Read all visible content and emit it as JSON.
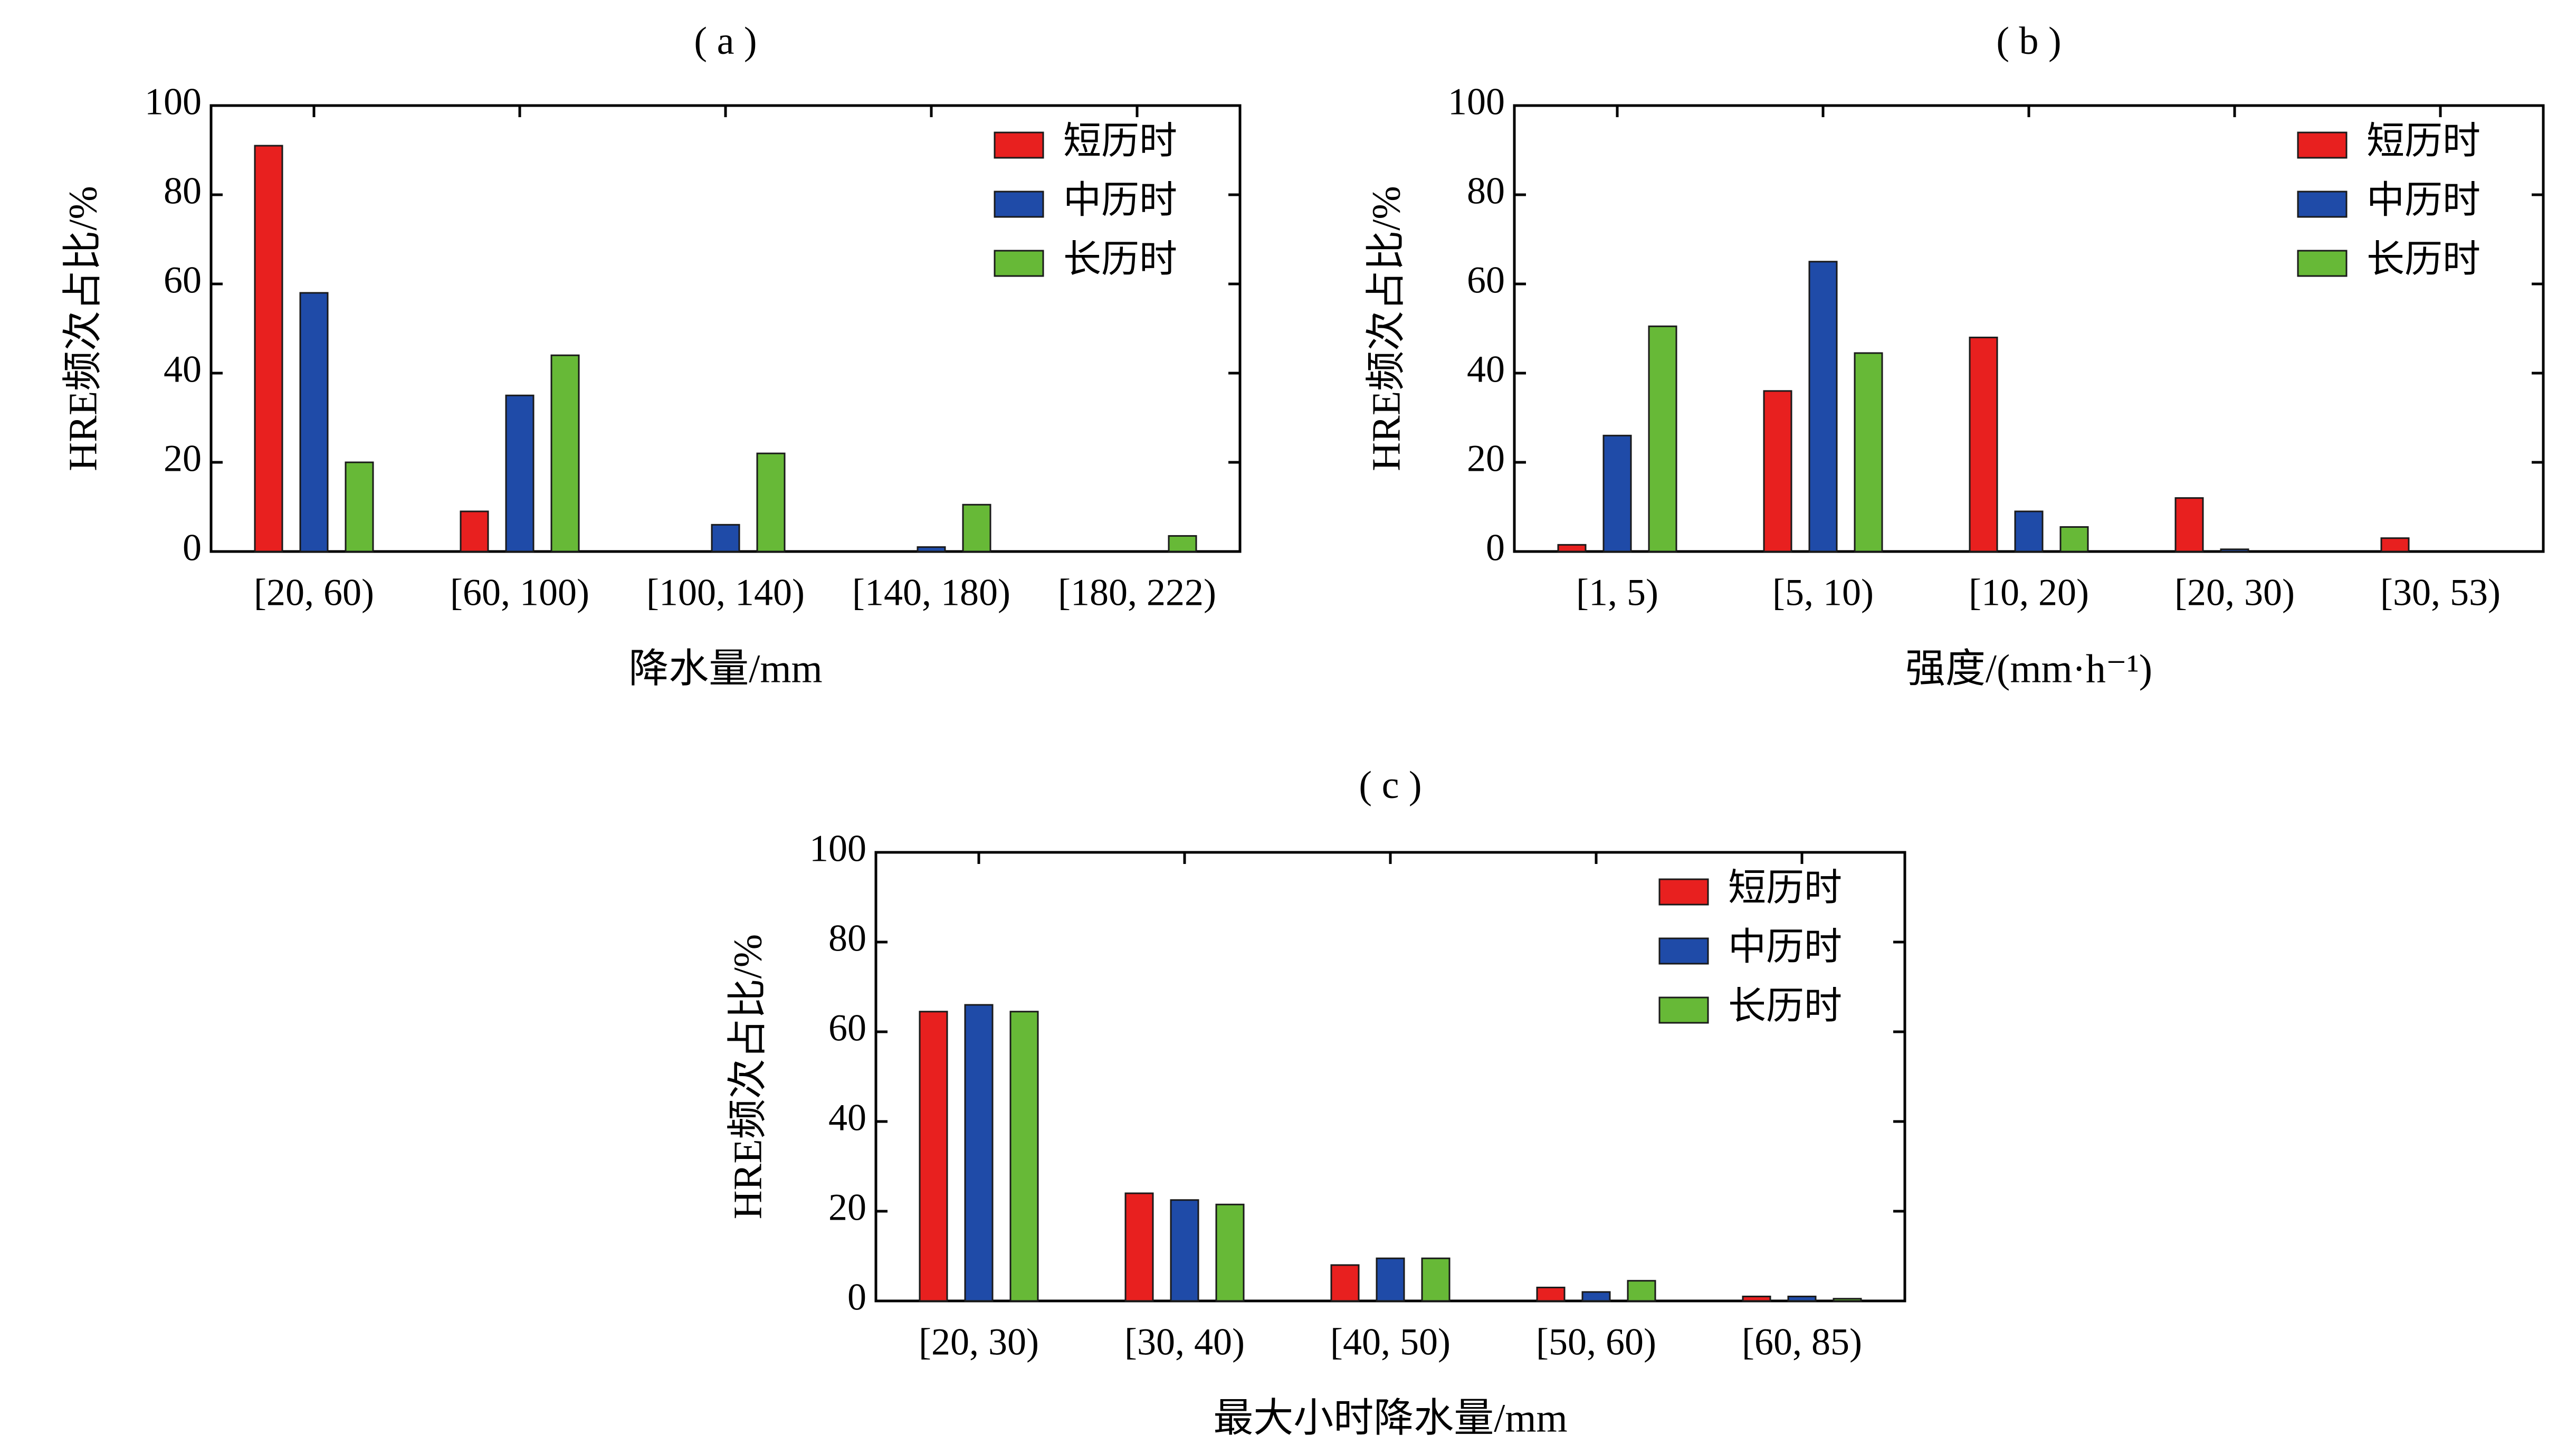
{
  "chart_data": [
    {
      "type": "bar",
      "panel_label": "( a )",
      "title": "",
      "xlabel": "降水量/mm",
      "ylabel": "HRE频次占比/%",
      "ylim": [
        0,
        100
      ],
      "yticks": [
        "0",
        "20",
        "40",
        "60",
        "80",
        "100"
      ],
      "categories": [
        "[20, 60)",
        "[60, 100)",
        "[100, 140)",
        "[140, 180)",
        "[180, 222)"
      ],
      "series": [
        {
          "name": "短历时",
          "color": "#e8201f",
          "values": [
            91,
            9,
            0,
            0,
            0
          ]
        },
        {
          "name": "中历时",
          "color": "#1f4ba8",
          "values": [
            58,
            35,
            6,
            1,
            0
          ]
        },
        {
          "name": "长历时",
          "color": "#67b937",
          "values": [
            20,
            44,
            22,
            10.5,
            3.5
          ]
        }
      ],
      "legend_position": "top-right",
      "grid": false
    },
    {
      "type": "bar",
      "panel_label": "( b )",
      "title": "",
      "xlabel": "强度/(mm·h⁻¹)",
      "ylabel": "HRE频次占比/%",
      "ylim": [
        0,
        100
      ],
      "yticks": [
        "0",
        "20",
        "40",
        "60",
        "80",
        "100"
      ],
      "categories": [
        "[1, 5)",
        "[5, 10)",
        "[10, 20)",
        "[20, 30)",
        "[30, 53)"
      ],
      "series": [
        {
          "name": "短历时",
          "color": "#e8201f",
          "values": [
            1.5,
            36,
            48,
            12,
            3
          ]
        },
        {
          "name": "中历时",
          "color": "#1f4ba8",
          "values": [
            26,
            65,
            9,
            0.5,
            0
          ]
        },
        {
          "name": "长历时",
          "color": "#67b937",
          "values": [
            50.5,
            44.5,
            5.5,
            0,
            0
          ]
        }
      ],
      "legend_position": "top-right",
      "grid": false
    },
    {
      "type": "bar",
      "panel_label": "( c )",
      "title": "",
      "xlabel": "最大小时降水量/mm",
      "ylabel": "HRE频次占比/%",
      "ylim": [
        0,
        100
      ],
      "yticks": [
        "0",
        "20",
        "40",
        "60",
        "80",
        "100"
      ],
      "categories": [
        "[20, 30)",
        "[30, 40)",
        "[40, 50)",
        "[50, 60)",
        "[60, 85)"
      ],
      "series": [
        {
          "name": "短历时",
          "color": "#e8201f",
          "values": [
            64.5,
            24,
            8,
            3,
            1
          ]
        },
        {
          "name": "中历时",
          "color": "#1f4ba8",
          "values": [
            66,
            22.5,
            9.5,
            2,
            1
          ]
        },
        {
          "name": "长历时",
          "color": "#67b937",
          "values": [
            64.5,
            21.5,
            9.5,
            4.5,
            0.5
          ]
        }
      ],
      "legend_position": "top-right",
      "grid": false
    }
  ]
}
